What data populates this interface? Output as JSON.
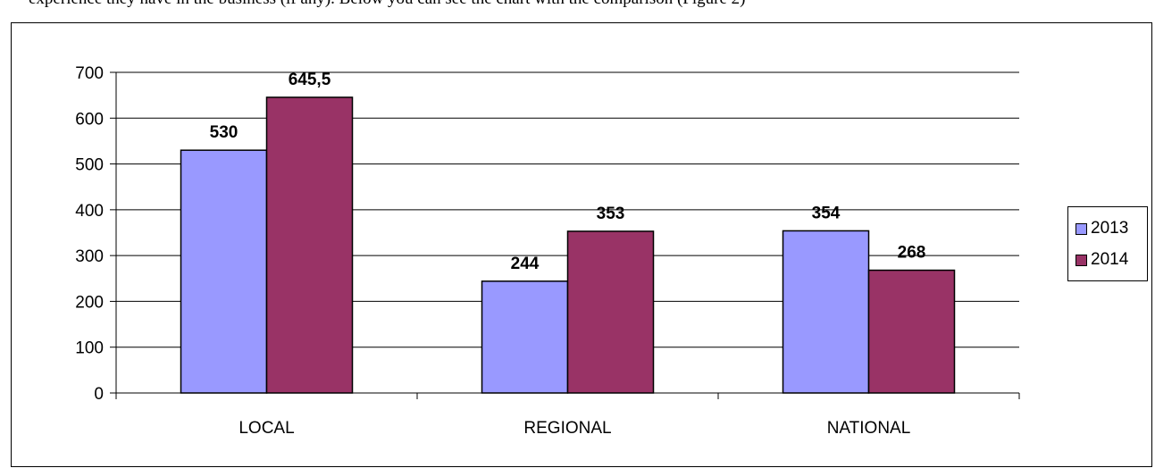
{
  "page_text": {
    "top_left": "experience they have in the business (if any). Below you can see the chart with the comparison (Figure 2)",
    "top_right": ""
  },
  "chart_data": {
    "type": "bar",
    "categories": [
      "LOCAL",
      "REGIONAL",
      "NATIONAL"
    ],
    "series": [
      {
        "name": "2013",
        "values": [
          530,
          244,
          354
        ],
        "labels": [
          "530",
          "244",
          "354"
        ],
        "color": "#9999ff"
      },
      {
        "name": "2014",
        "values": [
          645.5,
          353,
          268
        ],
        "labels": [
          "645,5",
          "353",
          "268"
        ],
        "color": "#993366"
      }
    ],
    "ylim": [
      0,
      700
    ],
    "yticks": [
      0,
      100,
      200,
      300,
      400,
      500,
      600,
      700
    ],
    "grid": true,
    "legend_position": "right",
    "title": "",
    "xlabel": "",
    "ylabel": ""
  }
}
